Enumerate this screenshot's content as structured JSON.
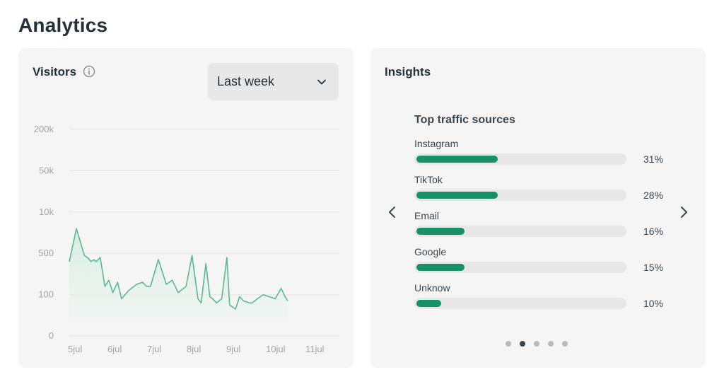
{
  "page": {
    "title": "Analytics"
  },
  "visitors": {
    "title": "Visitors",
    "info_icon": "info-icon",
    "period_select": {
      "selected": "Last week",
      "icon": "chevron-down-icon"
    },
    "chart_data": {
      "type": "area",
      "title": "Visitors",
      "xlabel": "",
      "ylabel": "",
      "y_scale": "categorical-log",
      "y_ticks": [
        "0",
        "100",
        "500",
        "10k",
        "50k",
        "200k"
      ],
      "x_ticks": [
        "5jul",
        "6jul",
        "7jul",
        "8jul",
        "9jul",
        "10jul",
        "11jul"
      ],
      "x_range": [
        0,
        6.8
      ],
      "grid": true,
      "legend": "none",
      "color": "#5db88f",
      "series": [
        {
          "name": "Visitors",
          "points": [
            [
              0.0,
              1.8
            ],
            [
              0.18,
              2.6
            ],
            [
              0.38,
              1.95
            ],
            [
              0.48,
              1.88
            ],
            [
              0.55,
              1.8
            ],
            [
              0.62,
              1.85
            ],
            [
              0.68,
              1.8
            ],
            [
              0.78,
              1.9
            ],
            [
              0.9,
              1.2
            ],
            [
              1.0,
              1.35
            ],
            [
              1.1,
              1.05
            ],
            [
              1.22,
              1.3
            ],
            [
              1.32,
              0.9
            ],
            [
              1.5,
              1.1
            ],
            [
              1.7,
              1.25
            ],
            [
              1.85,
              1.3
            ],
            [
              1.95,
              1.2
            ],
            [
              2.05,
              1.2
            ],
            [
              2.25,
              1.85
            ],
            [
              2.45,
              1.25
            ],
            [
              2.6,
              1.35
            ],
            [
              2.75,
              1.05
            ],
            [
              2.95,
              1.2
            ],
            [
              3.1,
              1.95
            ],
            [
              3.25,
              0.9
            ],
            [
              3.33,
              0.8
            ],
            [
              3.45,
              1.75
            ],
            [
              3.55,
              0.95
            ],
            [
              3.62,
              0.9
            ],
            [
              3.72,
              0.8
            ],
            [
              3.85,
              0.9
            ],
            [
              3.98,
              1.9
            ],
            [
              4.05,
              0.75
            ],
            [
              4.2,
              0.65
            ],
            [
              4.3,
              0.95
            ],
            [
              4.4,
              0.85
            ],
            [
              4.55,
              0.8
            ],
            [
              4.62,
              0.8
            ],
            [
              4.75,
              0.9
            ],
            [
              4.9,
              1.0
            ],
            [
              5.05,
              0.95
            ],
            [
              5.2,
              0.9
            ],
            [
              5.35,
              1.15
            ],
            [
              5.45,
              0.95
            ],
            [
              5.52,
              0.85
            ]
          ]
        }
      ]
    }
  },
  "insights": {
    "title": "Insights",
    "top_sources": {
      "title": "Top traffic sources",
      "items": [
        {
          "name": "Instagram",
          "percent_label": "31%",
          "fill_fraction": 0.39
        },
        {
          "name": "TikTok",
          "percent_label": "28%",
          "fill_fraction": 0.39
        },
        {
          "name": "Email",
          "percent_label": "16%",
          "fill_fraction": 0.23
        },
        {
          "name": "Google",
          "percent_label": "15%",
          "fill_fraction": 0.23
        },
        {
          "name": "Unknow",
          "percent_label": "10%",
          "fill_fraction": 0.12
        }
      ]
    },
    "nav": {
      "prev_icon": "chevron-left-icon",
      "next_icon": "chevron-right-icon"
    },
    "pagination": {
      "count": 5,
      "active_index": 1
    }
  },
  "colors": {
    "accent": "#179165",
    "line": "#5db88f",
    "card_bg": "#f5f5f5",
    "track": "#e7e7e7",
    "dot_inactive": "#b8bcc0",
    "dot_active": "#3a4650"
  }
}
